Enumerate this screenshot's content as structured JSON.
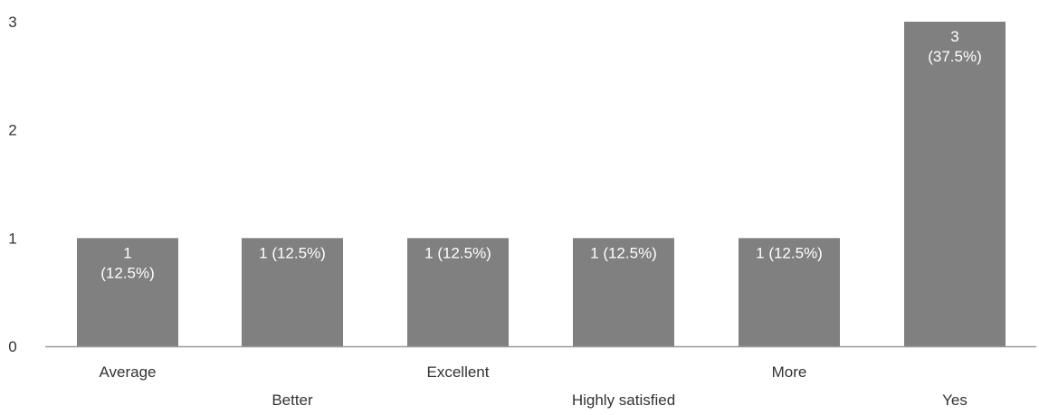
{
  "chart_data": {
    "type": "bar",
    "title": "",
    "xlabel": "",
    "ylabel": "",
    "categories": [
      "Average",
      "Better",
      "Excellent",
      "Highly satisfied",
      "More",
      "Yes"
    ],
    "values": [
      1,
      1,
      1,
      1,
      1,
      3
    ],
    "data_labels": [
      [
        "1",
        "(12.5%)"
      ],
      [
        "1 (12.5%)"
      ],
      [
        "1 (12.5%)"
      ],
      [
        "1 (12.5%)"
      ],
      [
        "1 (12.5%)"
      ],
      [
        "3",
        "(37.5%)"
      ]
    ],
    "ylim": [
      0,
      3
    ],
    "yticks": [
      0,
      1,
      2,
      3
    ],
    "grid": false,
    "legend": "none",
    "bar_color": "#808080",
    "axis_color": "#999999"
  }
}
